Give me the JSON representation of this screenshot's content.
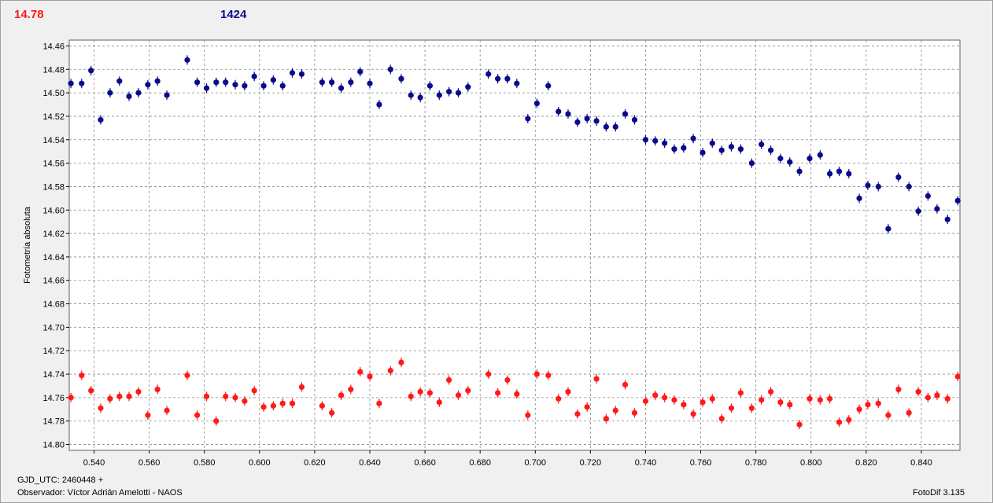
{
  "header": {
    "left_value": "14.78",
    "right_value": "1424"
  },
  "footer": {
    "gjd": "GJD_UTC: 2460448 +",
    "observer": "Observador: Víctor Adrián Amelotti - NAOS",
    "version": "FotoDif 3.135"
  },
  "colors": {
    "series_blue": "#0a0a8c",
    "series_red": "#ff1a1a",
    "grid": "#888888"
  },
  "chart_data": {
    "type": "scatter",
    "ylabel": "Fotometría absoluta",
    "xlabel": "",
    "xlim": [
      0.531,
      0.854
    ],
    "ylim": [
      14.455,
      14.805
    ],
    "y_inverted": true,
    "grid": true,
    "x_ticks": [
      "0.540",
      "0.560",
      "0.580",
      "0.600",
      "0.620",
      "0.640",
      "0.660",
      "0.680",
      "0.700",
      "0.720",
      "0.740",
      "0.760",
      "0.780",
      "0.800",
      "0.820",
      "0.840"
    ],
    "y_ticks": [
      "14.46",
      "14.48",
      "14.50",
      "14.52",
      "14.54",
      "14.56",
      "14.58",
      "14.60",
      "14.62",
      "14.64",
      "14.66",
      "14.68",
      "14.70",
      "14.72",
      "14.74",
      "14.76",
      "14.78",
      "14.80"
    ],
    "series": [
      {
        "color": "#0a0a8c",
        "points": [
          [
            0.5316,
            14.492
          ],
          [
            0.5355,
            14.492
          ],
          [
            0.5389,
            14.481
          ],
          [
            0.5424,
            14.523
          ],
          [
            0.5458,
            14.5
          ],
          [
            0.5492,
            14.49
          ],
          [
            0.5527,
            14.503
          ],
          [
            0.5561,
            14.5
          ],
          [
            0.5595,
            14.493
          ],
          [
            0.563,
            14.49
          ],
          [
            0.5664,
            14.502
          ],
          [
            0.5738,
            14.472
          ],
          [
            0.5774,
            14.491
          ],
          [
            0.5808,
            14.496
          ],
          [
            0.5843,
            14.491
          ],
          [
            0.5877,
            14.491
          ],
          [
            0.5912,
            14.493
          ],
          [
            0.5946,
            14.494
          ],
          [
            0.5981,
            14.486
          ],
          [
            0.6015,
            14.494
          ],
          [
            0.605,
            14.489
          ],
          [
            0.6084,
            14.494
          ],
          [
            0.6119,
            14.483
          ],
          [
            0.6153,
            14.484
          ],
          [
            0.6227,
            14.491
          ],
          [
            0.6262,
            14.491
          ],
          [
            0.6296,
            14.496
          ],
          [
            0.6331,
            14.491
          ],
          [
            0.6365,
            14.482
          ],
          [
            0.64,
            14.492
          ],
          [
            0.6434,
            14.51
          ],
          [
            0.6475,
            14.48
          ],
          [
            0.6514,
            14.488
          ],
          [
            0.6549,
            14.502
          ],
          [
            0.6583,
            14.504
          ],
          [
            0.6618,
            14.494
          ],
          [
            0.6652,
            14.502
          ],
          [
            0.6687,
            14.499
          ],
          [
            0.6721,
            14.5
          ],
          [
            0.6756,
            14.495
          ],
          [
            0.683,
            14.484
          ],
          [
            0.6864,
            14.488
          ],
          [
            0.6899,
            14.488
          ],
          [
            0.6933,
            14.492
          ],
          [
            0.6973,
            14.522
          ],
          [
            0.7006,
            14.509
          ],
          [
            0.7047,
            14.494
          ],
          [
            0.7084,
            14.516
          ],
          [
            0.7119,
            14.518
          ],
          [
            0.7153,
            14.525
          ],
          [
            0.7188,
            14.522
          ],
          [
            0.7222,
            14.524
          ],
          [
            0.7257,
            14.529
          ],
          [
            0.7291,
            14.529
          ],
          [
            0.7326,
            14.518
          ],
          [
            0.736,
            14.523
          ],
          [
            0.74,
            14.54
          ],
          [
            0.7435,
            14.541
          ],
          [
            0.7469,
            14.543
          ],
          [
            0.7504,
            14.548
          ],
          [
            0.7538,
            14.547
          ],
          [
            0.7573,
            14.539
          ],
          [
            0.7607,
            14.551
          ],
          [
            0.7642,
            14.543
          ],
          [
            0.7676,
            14.549
          ],
          [
            0.7711,
            14.546
          ],
          [
            0.7745,
            14.548
          ],
          [
            0.7785,
            14.56
          ],
          [
            0.782,
            14.544
          ],
          [
            0.7854,
            14.549
          ],
          [
            0.7889,
            14.556
          ],
          [
            0.7923,
            14.559
          ],
          [
            0.7958,
            14.567
          ],
          [
            0.7995,
            14.556
          ],
          [
            0.8033,
            14.553
          ],
          [
            0.8068,
            14.569
          ],
          [
            0.8102,
            14.567
          ],
          [
            0.8137,
            14.569
          ],
          [
            0.8175,
            14.59
          ],
          [
            0.8206,
            14.579
          ],
          [
            0.8244,
            14.58
          ],
          [
            0.828,
            14.616
          ],
          [
            0.8317,
            14.572
          ],
          [
            0.8355,
            14.58
          ],
          [
            0.8389,
            14.601
          ],
          [
            0.8424,
            14.588
          ],
          [
            0.8457,
            14.599
          ],
          [
            0.8495,
            14.608
          ],
          [
            0.8532,
            14.592
          ]
        ]
      },
      {
        "color": "#ff1a1a",
        "points": [
          [
            0.5316,
            14.76
          ],
          [
            0.5355,
            14.741
          ],
          [
            0.5389,
            14.754
          ],
          [
            0.5424,
            14.769
          ],
          [
            0.5458,
            14.761
          ],
          [
            0.5492,
            14.759
          ],
          [
            0.5527,
            14.759
          ],
          [
            0.5561,
            14.755
          ],
          [
            0.5595,
            14.775
          ],
          [
            0.563,
            14.753
          ],
          [
            0.5664,
            14.771
          ],
          [
            0.5738,
            14.741
          ],
          [
            0.5774,
            14.775
          ],
          [
            0.5808,
            14.759
          ],
          [
            0.5843,
            14.78
          ],
          [
            0.5877,
            14.759
          ],
          [
            0.5912,
            14.76
          ],
          [
            0.5946,
            14.763
          ],
          [
            0.5981,
            14.754
          ],
          [
            0.6015,
            14.768
          ],
          [
            0.605,
            14.767
          ],
          [
            0.6084,
            14.765
          ],
          [
            0.6119,
            14.765
          ],
          [
            0.6153,
            14.751
          ],
          [
            0.6227,
            14.767
          ],
          [
            0.6262,
            14.773
          ],
          [
            0.6296,
            14.758
          ],
          [
            0.6331,
            14.753
          ],
          [
            0.6365,
            14.738
          ],
          [
            0.64,
            14.742
          ],
          [
            0.6434,
            14.765
          ],
          [
            0.6475,
            14.737
          ],
          [
            0.6514,
            14.73
          ],
          [
            0.6549,
            14.759
          ],
          [
            0.6583,
            14.755
          ],
          [
            0.6618,
            14.756
          ],
          [
            0.6652,
            14.764
          ],
          [
            0.6687,
            14.745
          ],
          [
            0.6721,
            14.758
          ],
          [
            0.6756,
            14.754
          ],
          [
            0.683,
            14.74
          ],
          [
            0.6864,
            14.756
          ],
          [
            0.6899,
            14.745
          ],
          [
            0.6933,
            14.757
          ],
          [
            0.6973,
            14.775
          ],
          [
            0.7006,
            14.74
          ],
          [
            0.7047,
            14.741
          ],
          [
            0.7084,
            14.761
          ],
          [
            0.7119,
            14.755
          ],
          [
            0.7153,
            14.774
          ],
          [
            0.7188,
            14.768
          ],
          [
            0.7222,
            14.744
          ],
          [
            0.7257,
            14.778
          ],
          [
            0.7291,
            14.771
          ],
          [
            0.7326,
            14.749
          ],
          [
            0.736,
            14.773
          ],
          [
            0.74,
            14.763
          ],
          [
            0.7435,
            14.758
          ],
          [
            0.7469,
            14.76
          ],
          [
            0.7504,
            14.762
          ],
          [
            0.7538,
            14.766
          ],
          [
            0.7573,
            14.774
          ],
          [
            0.7607,
            14.764
          ],
          [
            0.7642,
            14.761
          ],
          [
            0.7676,
            14.778
          ],
          [
            0.7711,
            14.769
          ],
          [
            0.7745,
            14.756
          ],
          [
            0.7785,
            14.769
          ],
          [
            0.782,
            14.762
          ],
          [
            0.7854,
            14.755
          ],
          [
            0.7889,
            14.764
          ],
          [
            0.7923,
            14.766
          ],
          [
            0.7958,
            14.783
          ],
          [
            0.7995,
            14.761
          ],
          [
            0.8033,
            14.762
          ],
          [
            0.8068,
            14.761
          ],
          [
            0.8102,
            14.781
          ],
          [
            0.8137,
            14.779
          ],
          [
            0.8175,
            14.77
          ],
          [
            0.8206,
            14.766
          ],
          [
            0.8244,
            14.765
          ],
          [
            0.828,
            14.775
          ],
          [
            0.8317,
            14.753
          ],
          [
            0.8355,
            14.773
          ],
          [
            0.8389,
            14.755
          ],
          [
            0.8424,
            14.76
          ],
          [
            0.8457,
            14.758
          ],
          [
            0.8495,
            14.761
          ],
          [
            0.8532,
            14.742
          ]
        ]
      }
    ]
  }
}
